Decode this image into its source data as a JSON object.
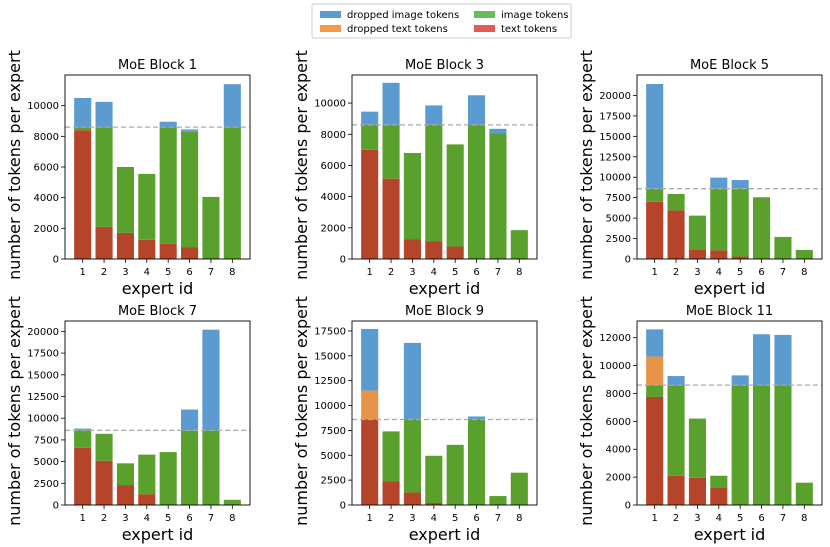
{
  "legend": [
    {
      "label": "dropped image tokens",
      "color": "#5b9bd0"
    },
    {
      "label": "dropped text tokens",
      "color": "#f39a4a"
    },
    {
      "label": "image tokens",
      "color": "#66bd5a"
    },
    {
      "label": "text tokens",
      "color": "#e35a5a"
    }
  ],
  "colors": {
    "image": "#5aa02c",
    "text": "#b5452a",
    "dropped_image": "#5b9bd0",
    "dropped_text": "#e8934a",
    "capacity_line": "#aaaaaa"
  },
  "chart_data": [
    {
      "type": "bar",
      "title": "MoE Block 1",
      "xlabel": "expert id",
      "ylabel": "number of tokens per expert",
      "categories": [
        "1",
        "2",
        "3",
        "4",
        "5",
        "6",
        "7",
        "8"
      ],
      "capacity": 8600,
      "ylim": [
        0,
        12000
      ],
      "yticks": [
        0,
        2000,
        4000,
        6000,
        8000,
        10000
      ],
      "series": [
        {
          "name": "text tokens",
          "values": [
            8400,
            2100,
            1700,
            1250,
            1000,
            750,
            0,
            0
          ]
        },
        {
          "name": "image tokens",
          "values": [
            200,
            6500,
            4300,
            4300,
            7600,
            7550,
            4050,
            8600
          ]
        },
        {
          "name": "dropped text tokens",
          "values": [
            0,
            0,
            0,
            0,
            0,
            0,
            0,
            0
          ]
        },
        {
          "name": "dropped image tokens",
          "values": [
            1900,
            1650,
            0,
            0,
            350,
            150,
            0,
            2800
          ]
        }
      ]
    },
    {
      "type": "bar",
      "title": "MoE Block 3",
      "xlabel": "expert id",
      "ylabel": "number of tokens per expert",
      "categories": [
        "1",
        "2",
        "3",
        "4",
        "5",
        "6",
        "7",
        "8"
      ],
      "capacity": 8600,
      "ylim": [
        0,
        11800
      ],
      "yticks": [
        0,
        2000,
        4000,
        6000,
        8000,
        10000
      ],
      "series": [
        {
          "name": "text tokens",
          "values": [
            7000,
            5150,
            1250,
            1150,
            800,
            0,
            0,
            0
          ]
        },
        {
          "name": "image tokens",
          "values": [
            1600,
            3450,
            5550,
            7450,
            6550,
            8600,
            8050,
            1850
          ]
        },
        {
          "name": "dropped text tokens",
          "values": [
            0,
            0,
            0,
            0,
            0,
            0,
            0,
            0
          ]
        },
        {
          "name": "dropped image tokens",
          "values": [
            850,
            2700,
            0,
            1250,
            0,
            1900,
            300,
            0
          ]
        }
      ]
    },
    {
      "type": "bar",
      "title": "MoE Block 5",
      "xlabel": "expert id",
      "ylabel": "number of tokens per expert",
      "categories": [
        "1",
        "2",
        "3",
        "4",
        "5",
        "6",
        "7",
        "8"
      ],
      "capacity": 8600,
      "ylim": [
        0,
        22500
      ],
      "yticks": [
        0,
        2500,
        5000,
        7500,
        10000,
        12500,
        15000,
        17500,
        20000
      ],
      "series": [
        {
          "name": "text tokens",
          "values": [
            7000,
            5950,
            1100,
            1050,
            300,
            0,
            0,
            0
          ]
        },
        {
          "name": "image tokens",
          "values": [
            1600,
            2000,
            4200,
            7550,
            8300,
            7550,
            2700,
            1100
          ]
        },
        {
          "name": "dropped text tokens",
          "values": [
            0,
            0,
            0,
            0,
            0,
            0,
            0,
            0
          ]
        },
        {
          "name": "dropped image tokens",
          "values": [
            12800,
            0,
            0,
            1350,
            1050,
            0,
            0,
            0
          ]
        }
      ]
    },
    {
      "type": "bar",
      "title": "MoE Block 7",
      "xlabel": "expert id",
      "ylabel": "number of tokens per expert",
      "categories": [
        "1",
        "2",
        "3",
        "4",
        "5",
        "6",
        "7",
        "8"
      ],
      "capacity": 8600,
      "ylim": [
        0,
        21200
      ],
      "yticks": [
        0,
        2500,
        5000,
        7500,
        10000,
        12500,
        15000,
        17500,
        20000
      ],
      "series": [
        {
          "name": "text tokens",
          "values": [
            6600,
            5100,
            2300,
            1250,
            0,
            0,
            0,
            0
          ]
        },
        {
          "name": "image tokens",
          "values": [
            2000,
            3100,
            2500,
            4550,
            6100,
            8600,
            8600,
            600
          ]
        },
        {
          "name": "dropped text tokens",
          "values": [
            0,
            0,
            0,
            0,
            0,
            0,
            0,
            0
          ]
        },
        {
          "name": "dropped image tokens",
          "values": [
            200,
            0,
            0,
            0,
            0,
            2400,
            11600,
            0
          ]
        }
      ]
    },
    {
      "type": "bar",
      "title": "MoE Block 9",
      "xlabel": "expert id",
      "ylabel": "number of tokens per expert",
      "categories": [
        "1",
        "2",
        "3",
        "4",
        "5",
        "6",
        "7",
        "8"
      ],
      "capacity": 8600,
      "ylim": [
        0,
        18500
      ],
      "yticks": [
        0,
        2500,
        5000,
        7500,
        10000,
        12500,
        15000,
        17500
      ],
      "series": [
        {
          "name": "text tokens",
          "values": [
            8600,
            2400,
            1250,
            200,
            0,
            0,
            0,
            0
          ]
        },
        {
          "name": "image tokens",
          "values": [
            0,
            5000,
            7350,
            4750,
            6050,
            8600,
            900,
            3250
          ]
        },
        {
          "name": "dropped text tokens",
          "values": [
            2900,
            0,
            0,
            0,
            0,
            0,
            0,
            0
          ]
        },
        {
          "name": "dropped image tokens",
          "values": [
            6200,
            0,
            7700,
            0,
            0,
            300,
            0,
            0
          ]
        }
      ]
    },
    {
      "type": "bar",
      "title": "MoE Block 11",
      "xlabel": "expert id",
      "ylabel": "number of tokens per expert",
      "categories": [
        "1",
        "2",
        "3",
        "4",
        "5",
        "6",
        "7",
        "8"
      ],
      "capacity": 8600,
      "ylim": [
        0,
        13200
      ],
      "yticks": [
        0,
        2000,
        4000,
        6000,
        8000,
        10000,
        12000
      ],
      "series": [
        {
          "name": "text tokens",
          "values": [
            7750,
            2100,
            1950,
            1250,
            0,
            0,
            0,
            0
          ]
        },
        {
          "name": "image tokens",
          "values": [
            850,
            6500,
            4250,
            850,
            8600,
            8600,
            8600,
            1600
          ]
        },
        {
          "name": "dropped text tokens",
          "values": [
            2050,
            0,
            0,
            0,
            0,
            0,
            0,
            0
          ]
        },
        {
          "name": "dropped image tokens",
          "values": [
            1950,
            650,
            0,
            0,
            700,
            3650,
            3600,
            0
          ]
        }
      ]
    }
  ]
}
